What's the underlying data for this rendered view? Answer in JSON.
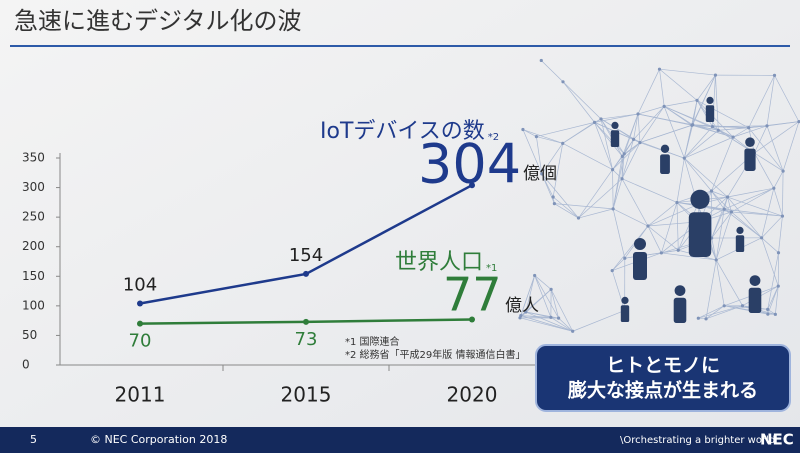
{
  "chart_data": {
    "type": "line",
    "title": "急速に進むデジタル化の波",
    "categories": [
      "2011",
      "2015",
      "2020"
    ],
    "series": [
      {
        "name": "IoTデバイスの数",
        "note": "*2",
        "unit": "億個",
        "color": "#1e3a8c",
        "values": [
          104,
          154,
          304
        ]
      },
      {
        "name": "世界人口",
        "note": "*1",
        "unit": "億人",
        "color": "#2f7d3a",
        "values": [
          70,
          73,
          77
        ]
      }
    ],
    "ylim": [
      0,
      350
    ],
    "yticks": [
      0,
      50,
      100,
      150,
      200,
      250,
      300,
      350
    ],
    "footnotes": [
      "*1 国際連合",
      "*2 総務省「平成29年版 情報通信白書」"
    ]
  },
  "slide": {
    "callout": [
      "ヒトとモノに",
      "膨大な接点が生まれる"
    ],
    "footer": {
      "page": "5",
      "copyright": "© NEC Corporation 2018",
      "tagline": "\\Orchestrating a brighter world",
      "logo": "NEC"
    }
  }
}
